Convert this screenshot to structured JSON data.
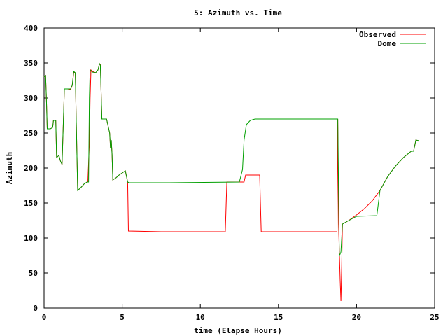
{
  "chart_data": {
    "type": "line",
    "title": "5: Azimuth vs. Time",
    "xlabel": "time (Elapse Hours)",
    "ylabel": "Azimuth",
    "xlim": [
      0,
      25
    ],
    "ylim": [
      0,
      400
    ],
    "xticks": [
      0,
      5,
      10,
      15,
      20,
      25
    ],
    "yticks": [
      0,
      50,
      100,
      150,
      200,
      250,
      300,
      350,
      400
    ],
    "grid": false,
    "legend_position": "top-right",
    "series": [
      {
        "name": "Observed",
        "color": "#ff0000",
        "points": [
          [
            0.0,
            330
          ],
          [
            0.1,
            332
          ],
          [
            0.15,
            300
          ],
          [
            0.2,
            256
          ],
          [
            0.4,
            256
          ],
          [
            0.55,
            258
          ],
          [
            0.6,
            268
          ],
          [
            0.75,
            268
          ],
          [
            0.8,
            215
          ],
          [
            0.95,
            218
          ],
          [
            1.05,
            210
          ],
          [
            1.15,
            205
          ],
          [
            1.3,
            313
          ],
          [
            1.5,
            313
          ],
          [
            1.7,
            312
          ],
          [
            1.8,
            318
          ],
          [
            1.9,
            336
          ],
          [
            2.0,
            336
          ],
          [
            2.15,
            168
          ],
          [
            2.35,
            172
          ],
          [
            2.55,
            177
          ],
          [
            2.75,
            180
          ],
          [
            2.8,
            180
          ],
          [
            2.9,
            235
          ],
          [
            2.95,
            300
          ],
          [
            3.0,
            340
          ],
          [
            3.1,
            338
          ],
          [
            3.3,
            336
          ],
          [
            3.45,
            340
          ],
          [
            3.55,
            349
          ],
          [
            3.6,
            348
          ],
          [
            3.7,
            270
          ],
          [
            4.0,
            270
          ],
          [
            4.1,
            260
          ],
          [
            4.2,
            250
          ],
          [
            4.25,
            228
          ],
          [
            4.3,
            240
          ],
          [
            4.35,
            220
          ],
          [
            4.4,
            183
          ],
          [
            4.6,
            186
          ],
          [
            4.8,
            190
          ],
          [
            5.0,
            193
          ],
          [
            5.2,
            196
          ],
          [
            5.35,
            180
          ],
          [
            5.4,
            110
          ],
          [
            7.5,
            109
          ],
          [
            11.6,
            109
          ],
          [
            11.7,
            180
          ],
          [
            12.8,
            180
          ],
          [
            12.9,
            190
          ],
          [
            13.8,
            190
          ],
          [
            13.9,
            109
          ],
          [
            18.5,
            109
          ],
          [
            18.75,
            109
          ],
          [
            18.8,
            270
          ],
          [
            18.85,
            120
          ],
          [
            18.95,
            40
          ],
          [
            19.0,
            10
          ],
          [
            19.05,
            60
          ],
          [
            19.1,
            120
          ],
          [
            19.5,
            125
          ],
          [
            20.0,
            133
          ],
          [
            20.5,
            142
          ],
          [
            21.0,
            153
          ],
          [
            21.5,
            168
          ],
          [
            22.0,
            188
          ],
          [
            22.5,
            203
          ],
          [
            23.0,
            215
          ],
          [
            23.5,
            224
          ],
          [
            23.65,
            224
          ],
          [
            23.8,
            240
          ],
          [
            24.0,
            238
          ]
        ]
      },
      {
        "name": "Dome",
        "color": "#00a000",
        "points": [
          [
            0.0,
            330
          ],
          [
            0.1,
            332
          ],
          [
            0.15,
            300
          ],
          [
            0.2,
            256
          ],
          [
            0.4,
            256
          ],
          [
            0.55,
            258
          ],
          [
            0.6,
            268
          ],
          [
            0.75,
            268
          ],
          [
            0.8,
            215
          ],
          [
            0.95,
            218
          ],
          [
            1.05,
            210
          ],
          [
            1.15,
            205
          ],
          [
            1.3,
            313
          ],
          [
            1.5,
            313
          ],
          [
            1.7,
            313
          ],
          [
            1.8,
            318
          ],
          [
            1.9,
            338
          ],
          [
            2.0,
            336
          ],
          [
            2.15,
            168
          ],
          [
            2.35,
            172
          ],
          [
            2.55,
            177
          ],
          [
            2.75,
            180
          ],
          [
            2.85,
            180
          ],
          [
            2.9,
            300
          ],
          [
            2.95,
            340
          ],
          [
            3.1,
            337
          ],
          [
            3.3,
            336
          ],
          [
            3.45,
            340
          ],
          [
            3.55,
            349
          ],
          [
            3.6,
            347
          ],
          [
            3.7,
            270
          ],
          [
            4.0,
            270
          ],
          [
            4.1,
            260
          ],
          [
            4.2,
            250
          ],
          [
            4.25,
            228
          ],
          [
            4.3,
            240
          ],
          [
            4.35,
            220
          ],
          [
            4.4,
            183
          ],
          [
            4.6,
            186
          ],
          [
            4.8,
            190
          ],
          [
            5.0,
            193
          ],
          [
            5.2,
            196
          ],
          [
            5.35,
            180
          ],
          [
            5.45,
            179
          ],
          [
            8.0,
            179
          ],
          [
            12.5,
            180
          ],
          [
            12.7,
            198
          ],
          [
            12.8,
            240
          ],
          [
            12.95,
            262
          ],
          [
            13.2,
            268
          ],
          [
            13.5,
            270
          ],
          [
            18.5,
            270
          ],
          [
            18.75,
            270
          ],
          [
            18.8,
            270
          ],
          [
            18.9,
            74
          ],
          [
            19.0,
            80
          ],
          [
            19.1,
            120
          ],
          [
            19.5,
            125
          ],
          [
            20.0,
            131
          ],
          [
            21.3,
            132
          ],
          [
            21.5,
            168
          ],
          [
            22.0,
            188
          ],
          [
            22.5,
            203
          ],
          [
            23.0,
            215
          ],
          [
            23.5,
            224
          ],
          [
            23.65,
            224
          ],
          [
            23.8,
            240
          ],
          [
            24.0,
            239
          ]
        ]
      }
    ]
  }
}
